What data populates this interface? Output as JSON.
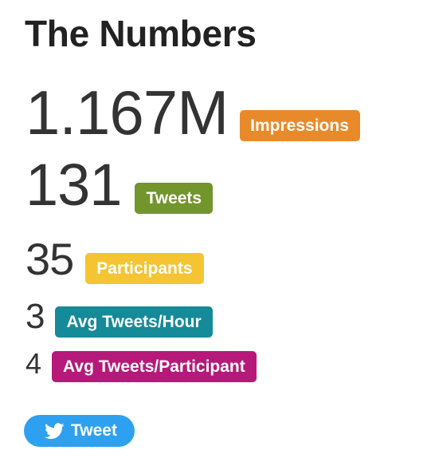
{
  "heading": "The Numbers",
  "stats": [
    {
      "value": "1.167M",
      "label": "Impressions",
      "color": "#E98A2A"
    },
    {
      "value": "131",
      "label": "Tweets",
      "color": "#72952C"
    },
    {
      "value": "35",
      "label": "Participants",
      "color": "#F4C432"
    },
    {
      "value": "3",
      "label": "Avg Tweets/Hour",
      "color": "#158A98"
    },
    {
      "value": "4",
      "label": "Avg Tweets/Participant",
      "color": "#B6197A"
    }
  ],
  "tweet_button": {
    "label": "Tweet",
    "icon": "twitter-bird-icon",
    "color": "#2DA1EF"
  }
}
